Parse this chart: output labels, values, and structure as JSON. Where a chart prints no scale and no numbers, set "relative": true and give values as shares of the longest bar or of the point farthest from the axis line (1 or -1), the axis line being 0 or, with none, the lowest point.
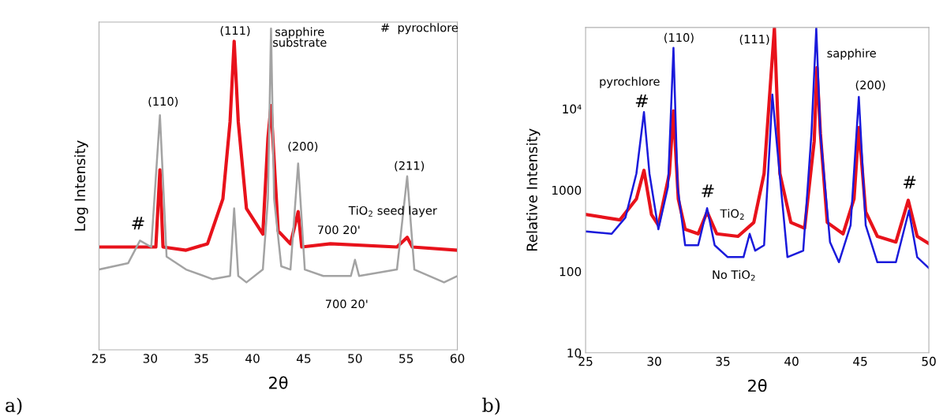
{
  "chart_data": [
    {
      "type": "line",
      "relative": true,
      "xlabel": "2θ",
      "ylabel": "Log Intensity",
      "xlim": [
        25,
        60
      ],
      "xticks": [
        25,
        30,
        35,
        40,
        45,
        50,
        55,
        60
      ],
      "tick_labels": "x",
      "grid": false,
      "series": [
        {
          "color": "#e8121b",
          "x": [
            25,
            29.6,
            30.55,
            30.95,
            31.25,
            33.5,
            35.6,
            37.1,
            37.8,
            38.2,
            38.6,
            39.4,
            41.0,
            41.5,
            41.8,
            42.5,
            43.7,
            44.45,
            44.8,
            47.6,
            54.1,
            55.1,
            55.6,
            60
          ],
          "values": [
            0.32,
            0.32,
            0.32,
            0.56,
            0.32,
            0.31,
            0.33,
            0.47,
            0.71,
            0.96,
            0.71,
            0.44,
            0.36,
            0.66,
            0.76,
            0.37,
            0.33,
            0.43,
            0.32,
            0.33,
            0.32,
            0.35,
            0.32,
            0.31
          ]
        },
        {
          "color": "#a3a3a3",
          "x": [
            25,
            27.85,
            29.0,
            30.1,
            30.95,
            31.6,
            33.5,
            36.1,
            37.8,
            38.2,
            38.6,
            39.4,
            41.0,
            41.5,
            41.8,
            42.1,
            42.8,
            43.7,
            44.45,
            45.1,
            46.9,
            49.6,
            50.0,
            50.4,
            54.1,
            55.1,
            55.8,
            58.7,
            60
          ],
          "values": [
            0.25,
            0.27,
            0.34,
            0.32,
            0.73,
            0.29,
            0.25,
            0.22,
            0.23,
            0.44,
            0.23,
            0.21,
            0.25,
            0.47,
            1.0,
            0.47,
            0.26,
            0.25,
            0.58,
            0.25,
            0.23,
            0.23,
            0.28,
            0.23,
            0.25,
            0.54,
            0.25,
            0.21,
            0.23
          ]
        }
      ],
      "annotations": [
        "#",
        "(110)",
        "(111)",
        "sapphire\nsubstrate",
        "(200)",
        "(211)",
        "#  pyrochlore",
        "TiO$_{2}$ seed layer",
        "700 20'",
        "700 20'",
        "a)"
      ]
    },
    {
      "type": "line",
      "log": "y",
      "xlabel": "2θ",
      "ylabel": "Relative Intensity",
      "xlim": [
        25,
        50
      ],
      "xticks": [
        25,
        30,
        35,
        40,
        45,
        50
      ],
      "ylim": [
        10,
        100000
      ],
      "yticks": [
        10,
        100,
        1000,
        {
          "value": 10000,
          "label": "10⁴"
        }
      ],
      "grid": false,
      "series": [
        {
          "color": "#e8121b",
          "x": [
            25.05,
            27.5,
            28.7,
            29.25,
            29.8,
            30.3,
            31.1,
            31.4,
            31.75,
            32.25,
            33.2,
            33.85,
            34.55,
            36.1,
            37.25,
            38.0,
            38.75,
            39.15,
            39.95,
            40.95,
            41.65,
            41.85,
            42.1,
            42.6,
            43.75,
            44.55,
            44.9,
            45.4,
            46.25,
            47.6,
            48.5,
            49.15,
            50
          ],
          "values": [
            500,
            430,
            780,
            1750,
            500,
            370,
            1600,
            9400,
            780,
            330,
            290,
            540,
            290,
            270,
            400,
            1600,
            98000,
            1600,
            400,
            340,
            4000,
            32000,
            5000,
            400,
            290,
            780,
            5900,
            540,
            270,
            230,
            750,
            270,
            220
          ]
        },
        {
          "color": "#1a1adb",
          "x": [
            25.05,
            26.9,
            27.9,
            28.7,
            29.25,
            29.65,
            30.3,
            31.0,
            31.4,
            31.7,
            32.25,
            33.2,
            33.85,
            34.4,
            35.35,
            36.5,
            36.95,
            37.35,
            38.0,
            38.4,
            38.6,
            38.95,
            39.7,
            40.85,
            41.45,
            41.8,
            42.1,
            42.8,
            43.45,
            44.3,
            44.9,
            45.4,
            46.25,
            47.6,
            48.55,
            49.15,
            50
          ],
          "values": [
            310,
            290,
            460,
            1600,
            9100,
            1600,
            330,
            1100,
            56000,
            1100,
            210,
            210,
            600,
            210,
            150,
            150,
            290,
            180,
            210,
            3400,
            15000,
            3400,
            150,
            180,
            5000,
            98000,
            5000,
            230,
            130,
            370,
            14000,
            370,
            130,
            130,
            560,
            150,
            110
          ]
        }
      ],
      "annotations": [
        "pyrochlore",
        "#",
        "(110)",
        "#",
        "(111)",
        "sapphire",
        "(200)",
        "#",
        "TiO$_{2}$",
        "No TiO$_{2}$",
        "b)"
      ]
    }
  ]
}
